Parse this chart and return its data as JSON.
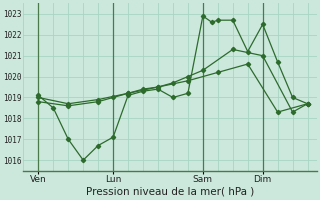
{
  "xlabel": "Pression niveau de la mer( hPa )",
  "bg_color": "#cce8dc",
  "grid_color": "#a8d4c4",
  "line_color": "#2d6b2d",
  "vline_color": "#4a7a4a",
  "ylim": [
    1015.5,
    1023.5
  ],
  "yticks": [
    1016,
    1017,
    1018,
    1019,
    1020,
    1021,
    1022,
    1023
  ],
  "xtick_labels": [
    "Ven",
    "Lun",
    "Sam",
    "Dim"
  ],
  "xtick_positions": [
    0.5,
    3.0,
    6.0,
    8.0
  ],
  "vline_positions": [
    0.5,
    3.0,
    6.0,
    8.0
  ],
  "xlim": [
    0.0,
    9.8
  ],
  "series1_x": [
    0.5,
    1.0,
    1.5,
    2.0,
    2.5,
    3.0,
    3.5,
    4.0,
    4.5,
    5.0,
    5.5,
    6.0,
    6.3,
    6.5,
    7.0,
    7.5,
    8.0,
    8.5,
    9.0,
    9.5
  ],
  "series1_y": [
    1019.1,
    1018.5,
    1017.0,
    1016.0,
    1016.7,
    1017.1,
    1019.1,
    1019.3,
    1019.4,
    1019.0,
    1019.2,
    1022.9,
    1022.6,
    1022.7,
    1022.7,
    1021.2,
    1022.5,
    1020.7,
    1019.0,
    1018.7
  ],
  "series2_x": [
    0.5,
    1.5,
    2.5,
    3.0,
    3.5,
    4.0,
    4.5,
    5.0,
    5.5,
    6.0,
    7.0,
    8.0,
    9.0,
    9.5
  ],
  "series2_y": [
    1018.8,
    1018.6,
    1018.8,
    1019.0,
    1019.2,
    1019.4,
    1019.5,
    1019.7,
    1020.0,
    1020.3,
    1021.3,
    1021.0,
    1018.3,
    1018.7
  ],
  "series3_x": [
    0.5,
    1.5,
    2.5,
    3.5,
    4.5,
    5.5,
    6.5,
    7.5,
    8.5,
    9.5
  ],
  "series3_y": [
    1019.0,
    1018.7,
    1018.9,
    1019.2,
    1019.5,
    1019.8,
    1020.2,
    1020.6,
    1018.3,
    1018.7
  ]
}
